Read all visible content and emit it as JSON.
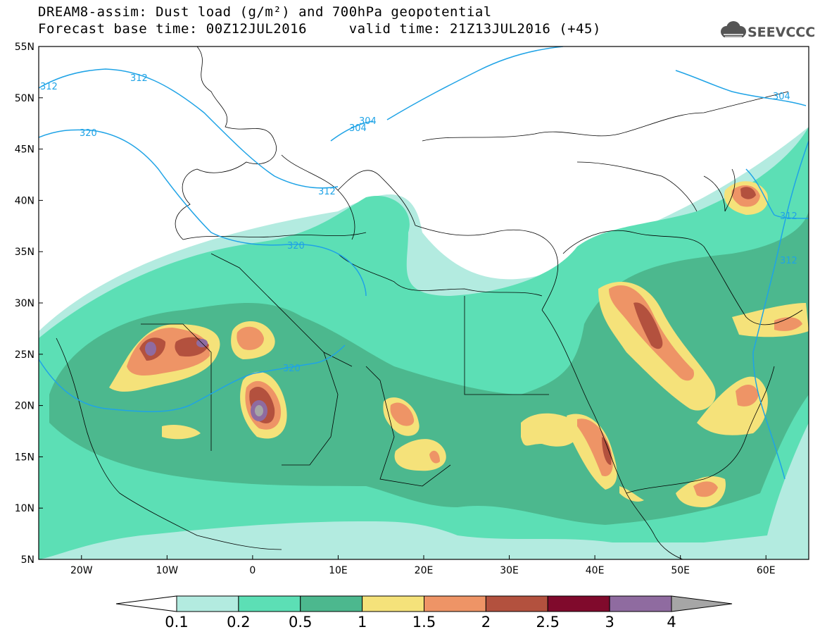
{
  "title": {
    "line1": "DREAM8-assim: Dust load (g/m²) and 700hPa geopotential",
    "line2": "Forecast base time: 00Z12JUL2016     valid time: 21Z13JUL2016 (+45)"
  },
  "logo": {
    "icon": "cloud-icon",
    "text": "SEEVCCC"
  },
  "map": {
    "lon_range": [
      -25,
      65
    ],
    "lat_range": [
      5,
      55
    ],
    "lat_ticks": [
      "55N",
      "50N",
      "45N",
      "40N",
      "35N",
      "30N",
      "25N",
      "20N",
      "15N",
      "10N",
      "5N"
    ],
    "lon_ticks": [
      "20W",
      "10W",
      "0",
      "10E",
      "20E",
      "30E",
      "40E",
      "50E",
      "60E"
    ],
    "contour_labels": [
      "312",
      "312",
      "304",
      "304",
      "320",
      "312",
      "320",
      "320",
      "312",
      "304",
      "312",
      "312"
    ]
  },
  "colorbar": {
    "labels": [
      "0.1",
      "0.2",
      "0.5",
      "1",
      "1.5",
      "2",
      "2.5",
      "3",
      "4"
    ],
    "colors": [
      "#ffffff",
      "#b3ebe0",
      "#5cdfb5",
      "#4cb88e",
      "#f5e27a",
      "#ee9466",
      "#b3513e",
      "#800a2c",
      "#8f6ba0",
      "#a6a6a6"
    ]
  },
  "colors": {
    "contour": "#1fa3e6",
    "land_outline": "#000000"
  }
}
